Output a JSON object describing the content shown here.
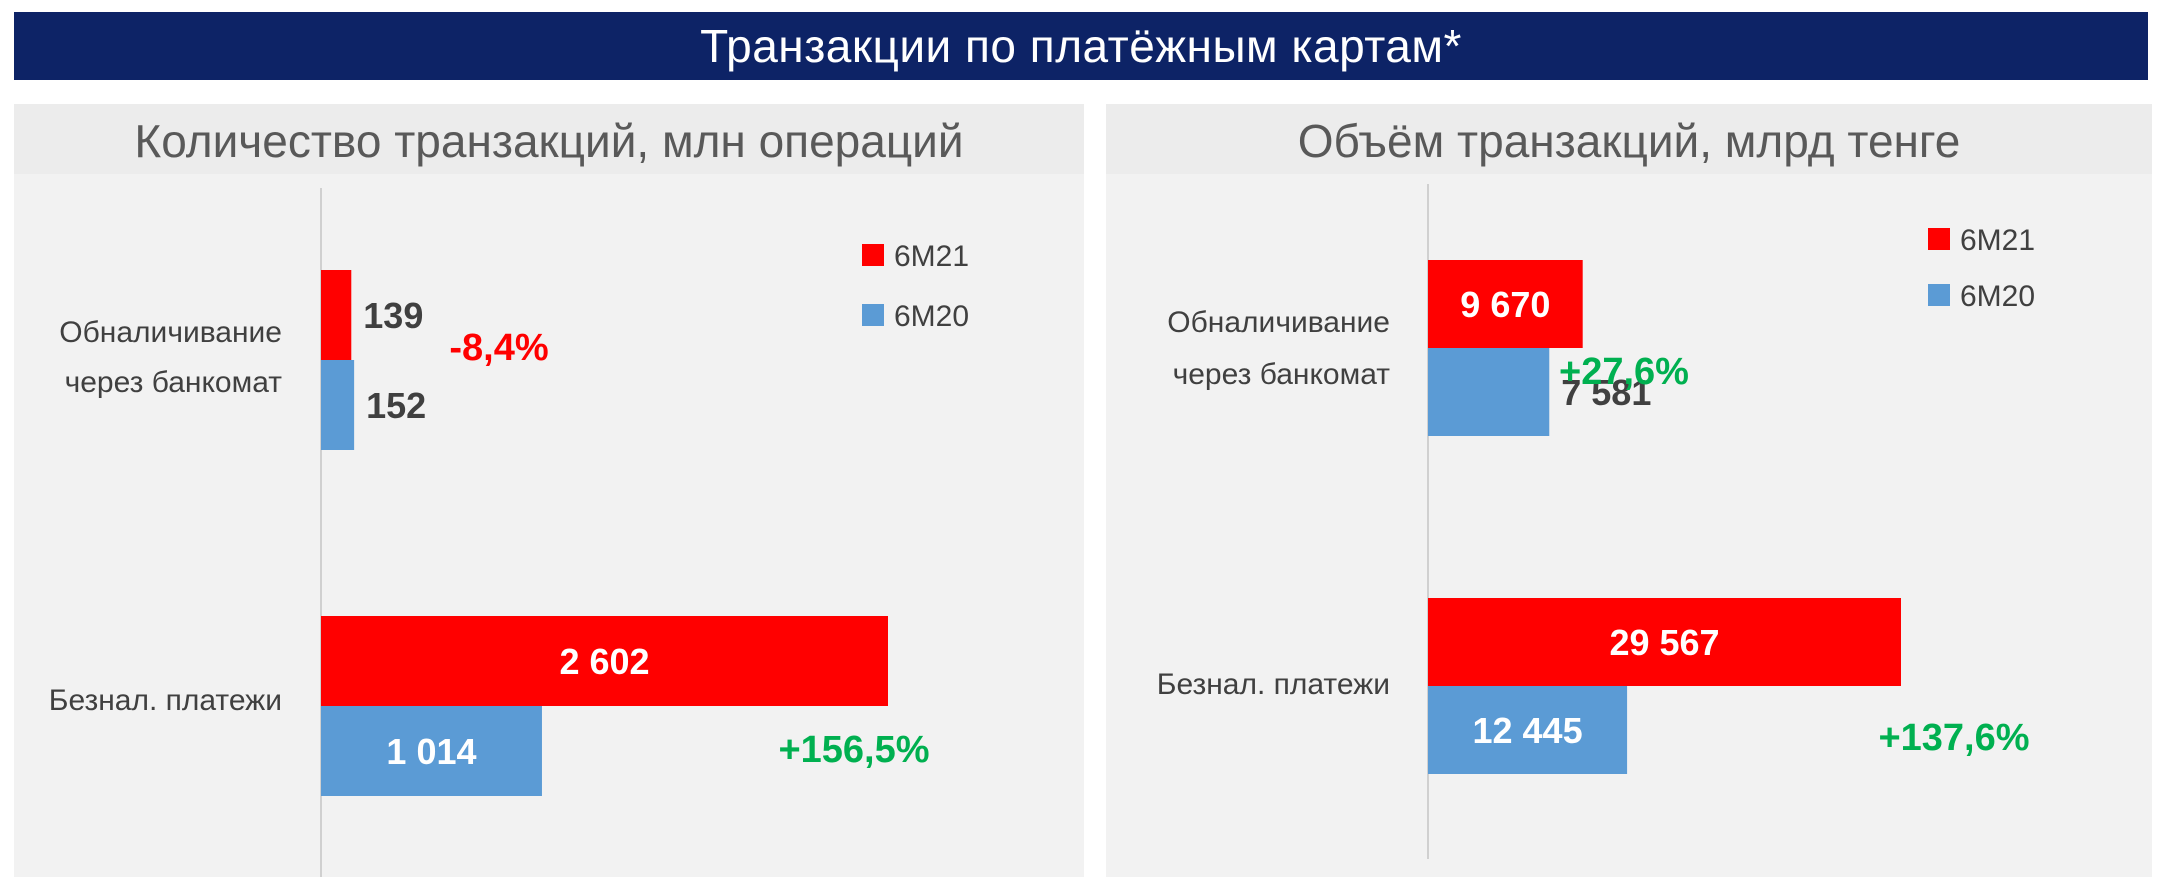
{
  "header": {
    "title": "Транзакции по платёжным картам*"
  },
  "colors": {
    "banner": "#0d2366",
    "series_6m21": "#ff0000",
    "series_6m20": "#5b9bd5",
    "negative": "#ff0000",
    "positive": "#00b050"
  },
  "chart_data": [
    {
      "type": "bar",
      "orientation": "horizontal",
      "title": "Количество транзакций, млн операций",
      "categories": [
        "Обналичивание через банкомат",
        "Безнал. платежи"
      ],
      "category_lines": [
        [
          "Обналичивание",
          "через банкомат"
        ],
        [
          "Безнал. платежи"
        ]
      ],
      "series": [
        {
          "name": "6M21",
          "values": [
            139,
            2602
          ],
          "labels": [
            "139",
            "2 602"
          ]
        },
        {
          "name": "6M20",
          "values": [
            152,
            1014
          ],
          "labels": [
            "152",
            "1 014"
          ]
        }
      ],
      "growth": [
        "-8,4%",
        "+156,5%"
      ],
      "legend": [
        "6M21",
        "6M20"
      ],
      "legend_position": "top-right"
    },
    {
      "type": "bar",
      "orientation": "horizontal",
      "title": "Объём транзакций, млрд тенге",
      "categories": [
        "Обналичивание через банкомат",
        "Безнал. платежи"
      ],
      "category_lines": [
        [
          "Обналичивание",
          "через банкомат"
        ],
        [
          "Безнал. платежи"
        ]
      ],
      "series": [
        {
          "name": "6M21",
          "values": [
            9670,
            29567
          ],
          "labels": [
            "9 670",
            "29 567"
          ]
        },
        {
          "name": "6M20",
          "values": [
            7581,
            12445
          ],
          "labels": [
            "7 581",
            "12 445"
          ]
        }
      ],
      "growth": [
        "+27,6%",
        "+137,6%"
      ],
      "legend": [
        "6M21",
        "6M20"
      ],
      "legend_position": "top-right"
    }
  ]
}
